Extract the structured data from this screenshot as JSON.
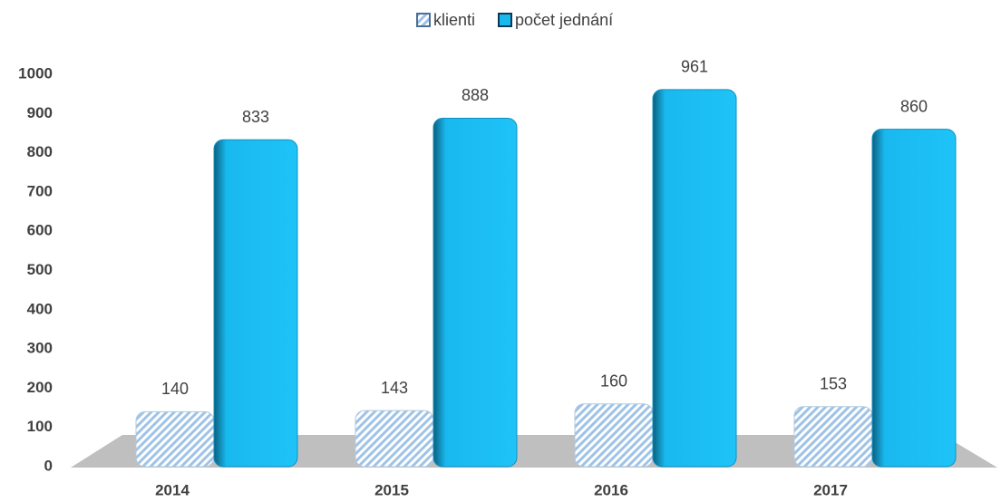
{
  "chart_data": {
    "type": "bar",
    "categories": [
      "2014",
      "2015",
      "2016",
      "2017"
    ],
    "series": [
      {
        "name": "klienti",
        "color": "#c9dcf0",
        "values": [
          140,
          143,
          160,
          153
        ]
      },
      {
        "name": "počet jednání",
        "color": "#19b9ef",
        "values": [
          833,
          888,
          961,
          860
        ]
      }
    ],
    "ylim": [
      0,
      1000
    ],
    "yticks": [
      0,
      100,
      200,
      300,
      400,
      500,
      600,
      700,
      800,
      900,
      1000
    ],
    "legend": "top"
  }
}
